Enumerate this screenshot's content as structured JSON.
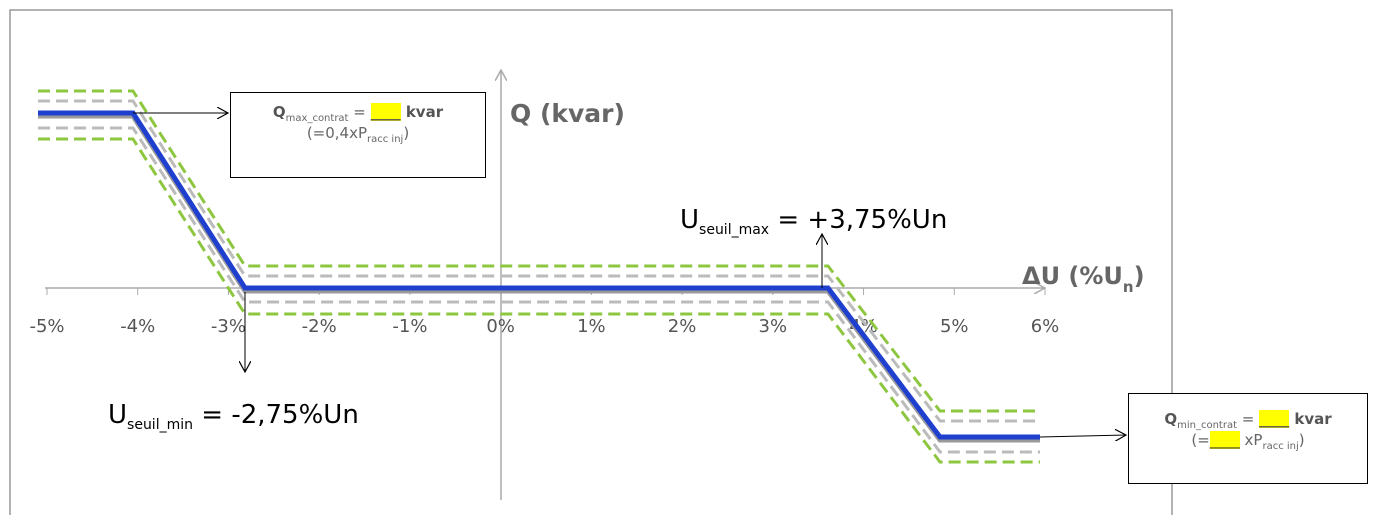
{
  "axes": {
    "y_label": "Q (kvar)",
    "x_label": {
      "main": "ΔU (%U",
      "sub": "n",
      "end": ")"
    },
    "x_ticks": [
      "-5%",
      "-4%",
      "-3%",
      "-2%",
      "-1%",
      "0%",
      "1%",
      "2%",
      "3%",
      "4%",
      "5%",
      "6%"
    ]
  },
  "annotations": {
    "q_max": {
      "q": "Q",
      "sub": "max_contrat",
      "eq": " = ",
      "blank": "____",
      "unit": " kvar",
      "l2_open": "(=0,4xP",
      "l2_sub": "racc inj",
      "l2_close": ")"
    },
    "q_min": {
      "q": "Q",
      "sub": "min_contrat",
      "eq": " = ",
      "blank": "____",
      "unit": " kvar",
      "l2_open": "(=",
      "l2_blank": "____",
      "l2_mid": " xP",
      "l2_sub": "racc inj",
      "l2_close": ")"
    },
    "u_max": {
      "u": "U",
      "sub": "seuil_max",
      "rest": " = +3,75%Un"
    },
    "u_min": {
      "u": "U",
      "sub": "seuil_min",
      "rest": " = -2,75%Un"
    }
  }
}
